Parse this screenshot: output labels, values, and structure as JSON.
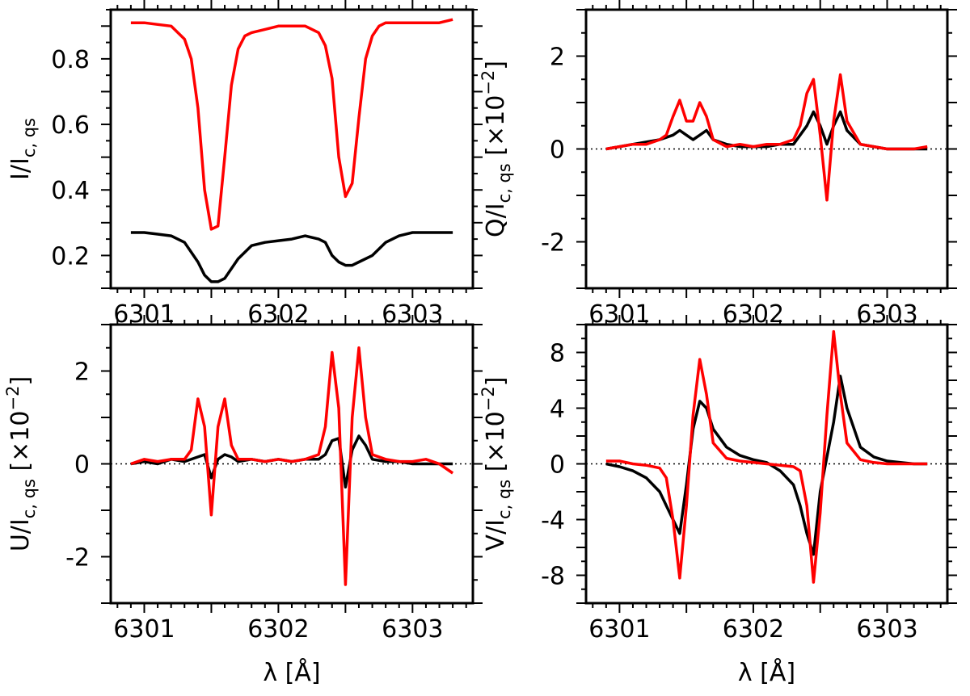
{
  "chart_data": [
    {
      "id": "stokes-i",
      "type": "line",
      "ylabel": "I/I",
      "ylabel_sub": "c, qs",
      "ylabel_suffix": "",
      "xlabel": "",
      "xlim": [
        6300.75,
        6303.45
      ],
      "ylim": [
        0.1,
        0.95
      ],
      "xticks": [
        "6301",
        "6302",
        "6303"
      ],
      "yticks": [
        "0.2",
        "0.4",
        "0.6",
        "0.8"
      ],
      "ytick_values": [
        0.2,
        0.4,
        0.6,
        0.8
      ],
      "zero_line": false,
      "series": [
        {
          "color": "#000000",
          "x": [
            6300.9,
            6301.0,
            6301.1,
            6301.2,
            6301.3,
            6301.4,
            6301.45,
            6301.5,
            6301.55,
            6301.6,
            6301.7,
            6301.8,
            6301.9,
            6302.0,
            6302.1,
            6302.2,
            6302.3,
            6302.35,
            6302.4,
            6302.45,
            6302.5,
            6302.55,
            6302.6,
            6302.7,
            6302.8,
            6302.9,
            6303.0,
            6303.1,
            6303.2,
            6303.3
          ],
          "y": [
            0.27,
            0.27,
            0.265,
            0.26,
            0.24,
            0.18,
            0.14,
            0.12,
            0.12,
            0.13,
            0.19,
            0.23,
            0.24,
            0.245,
            0.25,
            0.26,
            0.25,
            0.24,
            0.2,
            0.18,
            0.17,
            0.17,
            0.18,
            0.2,
            0.24,
            0.26,
            0.27,
            0.27,
            0.27,
            0.27
          ]
        },
        {
          "color": "#ff0000",
          "x": [
            6300.9,
            6301.0,
            6301.1,
            6301.2,
            6301.3,
            6301.35,
            6301.4,
            6301.45,
            6301.5,
            6301.55,
            6301.6,
            6301.65,
            6301.7,
            6301.75,
            6301.8,
            6301.9,
            6302.0,
            6302.1,
            6302.2,
            6302.3,
            6302.35,
            6302.4,
            6302.45,
            6302.5,
            6302.55,
            6302.6,
            6302.65,
            6302.7,
            6302.75,
            6302.8,
            6302.9,
            6303.0,
            6303.1,
            6303.2,
            6303.3
          ],
          "y": [
            0.91,
            0.91,
            0.905,
            0.9,
            0.86,
            0.8,
            0.65,
            0.4,
            0.28,
            0.29,
            0.5,
            0.72,
            0.83,
            0.87,
            0.88,
            0.89,
            0.9,
            0.9,
            0.9,
            0.88,
            0.84,
            0.74,
            0.5,
            0.38,
            0.42,
            0.62,
            0.8,
            0.87,
            0.9,
            0.91,
            0.91,
            0.91,
            0.91,
            0.91,
            0.92
          ]
        }
      ]
    },
    {
      "id": "stokes-q",
      "type": "line",
      "ylabel": "Q/I",
      "ylabel_sub": "c, qs",
      "ylabel_suffix": " [×10",
      "ylabel_exp": "−2",
      "ylabel_close": "]",
      "xlabel": "",
      "xlim": [
        6300.75,
        6303.45
      ],
      "ylim": [
        -3,
        3
      ],
      "xticks": [
        "6301",
        "6302",
        "6303"
      ],
      "yticks": [
        "-2",
        "0",
        "2"
      ],
      "ytick_values": [
        -2,
        0,
        2
      ],
      "zero_line": true,
      "series": [
        {
          "color": "#000000",
          "x": [
            6300.9,
            6301.0,
            6301.1,
            6301.2,
            6301.3,
            6301.4,
            6301.45,
            6301.5,
            6301.55,
            6301.6,
            6301.65,
            6301.7,
            6301.8,
            6301.9,
            6302.0,
            6302.1,
            6302.2,
            6302.3,
            6302.4,
            6302.45,
            6302.5,
            6302.55,
            6302.6,
            6302.65,
            6302.7,
            6302.8,
            6302.9,
            6303.0,
            6303.1,
            6303.2,
            6303.3
          ],
          "y": [
            0,
            0.05,
            0.1,
            0.15,
            0.2,
            0.3,
            0.4,
            0.3,
            0.2,
            0.3,
            0.4,
            0.2,
            0.1,
            0.05,
            0.05,
            0.05,
            0.1,
            0.1,
            0.5,
            0.8,
            0.5,
            0.1,
            0.5,
            0.8,
            0.4,
            0.1,
            0.05,
            0,
            0,
            0,
            0
          ]
        },
        {
          "color": "#ff0000",
          "x": [
            6300.9,
            6301.0,
            6301.1,
            6301.2,
            6301.3,
            6301.35,
            6301.4,
            6301.45,
            6301.5,
            6301.55,
            6301.6,
            6301.65,
            6301.7,
            6301.8,
            6301.9,
            6302.0,
            6302.1,
            6302.2,
            6302.3,
            6302.35,
            6302.4,
            6302.45,
            6302.5,
            6302.55,
            6302.6,
            6302.65,
            6302.7,
            6302.8,
            6302.9,
            6303.0,
            6303.1,
            6303.2,
            6303.3
          ],
          "y": [
            0,
            0.05,
            0.1,
            0.1,
            0.2,
            0.3,
            0.7,
            1.05,
            0.6,
            0.6,
            1.0,
            0.7,
            0.2,
            0.05,
            0.1,
            0.05,
            0.1,
            0.1,
            0.2,
            0.5,
            1.2,
            1.5,
            0.3,
            -1.1,
            0.6,
            1.6,
            0.6,
            0.1,
            0.05,
            0,
            0,
            0,
            0.05
          ]
        }
      ]
    },
    {
      "id": "stokes-u",
      "type": "line",
      "ylabel": "U/I",
      "ylabel_sub": "c, qs",
      "ylabel_suffix": " [×10",
      "ylabel_exp": "−2",
      "ylabel_close": "]",
      "xlabel": "λ [Å]",
      "xlim": [
        6300.75,
        6303.45
      ],
      "ylim": [
        -3,
        3
      ],
      "xticks": [
        "6301",
        "6302",
        "6303"
      ],
      "yticks": [
        "-2",
        "0",
        "2"
      ],
      "ytick_values": [
        -2,
        0,
        2
      ],
      "zero_line": true,
      "series": [
        {
          "color": "#000000",
          "x": [
            6300.9,
            6301.0,
            6301.1,
            6301.2,
            6301.3,
            6301.4,
            6301.45,
            6301.5,
            6301.55,
            6301.6,
            6301.65,
            6301.7,
            6301.8,
            6301.9,
            6302.0,
            6302.1,
            6302.2,
            6302.3,
            6302.35,
            6302.4,
            6302.45,
            6302.5,
            6302.55,
            6302.6,
            6302.65,
            6302.7,
            6302.8,
            6302.9,
            6303.0,
            6303.1,
            6303.2,
            6303.3
          ],
          "y": [
            0,
            0.05,
            0,
            0.1,
            0.05,
            0.15,
            0.2,
            -0.3,
            0.1,
            0.2,
            0.15,
            0.05,
            0.1,
            0.05,
            0.1,
            0.05,
            0.1,
            0.1,
            0.2,
            0.5,
            0.55,
            -0.5,
            0.3,
            0.6,
            0.4,
            0.1,
            0.05,
            0.05,
            0,
            0,
            0,
            0
          ]
        },
        {
          "color": "#ff0000",
          "x": [
            6300.9,
            6301.0,
            6301.1,
            6301.2,
            6301.3,
            6301.35,
            6301.4,
            6301.45,
            6301.5,
            6301.55,
            6301.6,
            6301.65,
            6301.7,
            6301.8,
            6301.9,
            6302.0,
            6302.1,
            6302.2,
            6302.3,
            6302.35,
            6302.4,
            6302.45,
            6302.5,
            6302.55,
            6302.6,
            6302.65,
            6302.7,
            6302.8,
            6302.9,
            6303.0,
            6303.1,
            6303.2,
            6303.3
          ],
          "y": [
            0,
            0.1,
            0.05,
            0.1,
            0.1,
            0.3,
            1.4,
            0.8,
            -1.1,
            0.8,
            1.4,
            0.4,
            0.1,
            0.1,
            0.05,
            0.1,
            0.05,
            0.1,
            0.2,
            0.8,
            2.4,
            1.2,
            -2.6,
            1.0,
            2.5,
            1.0,
            0.2,
            0.1,
            0.05,
            0.05,
            0.1,
            0,
            -0.2
          ]
        }
      ]
    },
    {
      "id": "stokes-v",
      "type": "line",
      "ylabel": "V/I",
      "ylabel_sub": "c, qs",
      "ylabel_suffix": " [×10",
      "ylabel_exp": "−2",
      "ylabel_close": "]",
      "xlabel": "λ [Å]",
      "xlim": [
        6300.75,
        6303.45
      ],
      "ylim": [
        -10,
        10
      ],
      "xticks": [
        "6301",
        "6302",
        "6303"
      ],
      "yticks": [
        "-8",
        "-4",
        "0",
        "4",
        "8"
      ],
      "ytick_values": [
        -8,
        -4,
        0,
        4,
        8
      ],
      "zero_line": true,
      "series": [
        {
          "color": "#000000",
          "x": [
            6300.9,
            6301.0,
            6301.1,
            6301.2,
            6301.3,
            6301.35,
            6301.4,
            6301.45,
            6301.5,
            6301.55,
            6301.6,
            6301.65,
            6301.7,
            6301.8,
            6301.9,
            6302.0,
            6302.1,
            6302.2,
            6302.3,
            6302.35,
            6302.4,
            6302.45,
            6302.5,
            6302.55,
            6302.6,
            6302.65,
            6302.7,
            6302.8,
            6302.9,
            6303.0,
            6303.1,
            6303.2,
            6303.3
          ],
          "y": [
            0,
            -0.2,
            -0.5,
            -1.0,
            -2.0,
            -3.0,
            -4.0,
            -5.0,
            -1.5,
            2.5,
            4.5,
            4.0,
            2.5,
            1.2,
            0.6,
            0.3,
            0.1,
            -0.5,
            -1.5,
            -3.0,
            -5.0,
            -6.5,
            -2.0,
            0.5,
            3.0,
            6.3,
            4.0,
            1.2,
            0.5,
            0.2,
            0.1,
            0,
            0
          ]
        },
        {
          "color": "#ff0000",
          "x": [
            6300.9,
            6301.0,
            6301.1,
            6301.2,
            6301.3,
            6301.35,
            6301.4,
            6301.45,
            6301.5,
            6301.55,
            6301.6,
            6301.65,
            6301.7,
            6301.8,
            6301.9,
            6302.0,
            6302.1,
            6302.2,
            6302.3,
            6302.35,
            6302.4,
            6302.45,
            6302.5,
            6302.55,
            6302.6,
            6302.65,
            6302.7,
            6302.8,
            6302.9,
            6303.0,
            6303.1,
            6303.2,
            6303.3
          ],
          "y": [
            0.2,
            0.2,
            0,
            -0.1,
            -0.3,
            -1.0,
            -4.0,
            -8.2,
            -3.0,
            3.5,
            7.5,
            5.0,
            1.5,
            0.4,
            0.2,
            0.1,
            0,
            -0.1,
            -0.2,
            -0.5,
            -3.0,
            -8.5,
            -3.5,
            3.5,
            9.5,
            5.0,
            1.5,
            0.3,
            0.1,
            0,
            0,
            0,
            0
          ]
        }
      ]
    }
  ]
}
